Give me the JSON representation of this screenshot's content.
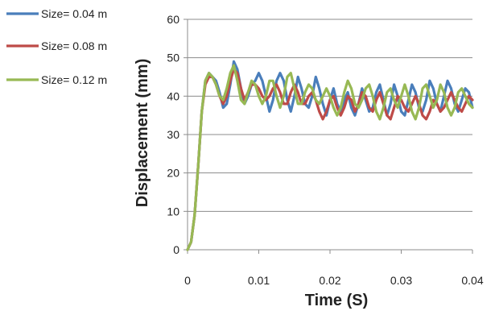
{
  "chart_data": {
    "type": "line",
    "xlabel": "Time (S)",
    "ylabel": "Displacement (mm)",
    "xlim": [
      0,
      0.04
    ],
    "ylim": [
      0,
      60
    ],
    "xticks": [
      0,
      0.01,
      0.02,
      0.03,
      0.04
    ],
    "xtick_labels": [
      "0",
      "0.01",
      "0.02",
      "0.03",
      "0.04"
    ],
    "yticks": [
      0,
      10,
      20,
      30,
      40,
      50,
      60
    ],
    "ytick_labels": [
      "0",
      "10",
      "20",
      "30",
      "40",
      "50",
      "60"
    ],
    "grid": "horizontal",
    "legend_position": "top-left",
    "series": [
      {
        "name": "Size= 0.04 m",
        "color": "#4a7ebb",
        "x": [
          0,
          0.0005,
          0.001,
          0.0015,
          0.002,
          0.0025,
          0.003,
          0.0035,
          0.004,
          0.0045,
          0.005,
          0.0055,
          0.006,
          0.0065,
          0.007,
          0.0075,
          0.008,
          0.0085,
          0.009,
          0.0095,
          0.01,
          0.0105,
          0.011,
          0.0115,
          0.012,
          0.0125,
          0.013,
          0.0135,
          0.014,
          0.0145,
          0.015,
          0.0155,
          0.016,
          0.0165,
          0.017,
          0.0175,
          0.018,
          0.0185,
          0.019,
          0.0195,
          0.02,
          0.0205,
          0.021,
          0.0215,
          0.022,
          0.0225,
          0.023,
          0.0235,
          0.024,
          0.0245,
          0.025,
          0.0255,
          0.026,
          0.0265,
          0.027,
          0.0275,
          0.028,
          0.0285,
          0.029,
          0.0295,
          0.03,
          0.0305,
          0.031,
          0.0315,
          0.032,
          0.0325,
          0.033,
          0.0335,
          0.034,
          0.0345,
          0.035,
          0.0355,
          0.036,
          0.0365,
          0.037,
          0.0375,
          0.038,
          0.0385,
          0.039,
          0.0395,
          0.04
        ],
        "y": [
          0,
          2,
          9,
          22,
          36,
          44,
          46,
          45,
          44,
          41,
          37,
          38,
          43,
          49,
          47,
          42,
          38,
          40,
          43,
          44,
          46,
          44,
          40,
          36,
          39,
          44,
          46,
          44,
          39,
          36,
          40,
          45,
          42,
          38,
          37,
          40,
          45,
          42,
          38,
          35,
          39,
          42,
          38,
          36,
          39,
          41,
          37,
          35,
          38,
          42,
          39,
          36,
          37,
          41,
          43,
          39,
          35,
          38,
          43,
          40,
          36,
          35,
          39,
          43,
          41,
          37,
          36,
          39,
          44,
          42,
          38,
          36,
          40,
          44,
          42,
          38,
          36,
          39,
          42,
          41,
          37
        ]
      },
      {
        "name": "Size= 0.08 m",
        "color": "#be4b48",
        "x": [
          0,
          0.0005,
          0.001,
          0.0015,
          0.002,
          0.0025,
          0.003,
          0.0035,
          0.004,
          0.0045,
          0.005,
          0.0055,
          0.006,
          0.0065,
          0.007,
          0.0075,
          0.008,
          0.0085,
          0.009,
          0.0095,
          0.01,
          0.0105,
          0.011,
          0.0115,
          0.012,
          0.0125,
          0.013,
          0.0135,
          0.014,
          0.0145,
          0.015,
          0.0155,
          0.016,
          0.0165,
          0.017,
          0.0175,
          0.018,
          0.0185,
          0.019,
          0.0195,
          0.02,
          0.0205,
          0.021,
          0.0215,
          0.022,
          0.0225,
          0.023,
          0.0235,
          0.024,
          0.0245,
          0.025,
          0.0255,
          0.026,
          0.0265,
          0.027,
          0.0275,
          0.028,
          0.0285,
          0.029,
          0.0295,
          0.03,
          0.0305,
          0.031,
          0.0315,
          0.032,
          0.0325,
          0.033,
          0.0335,
          0.034,
          0.0345,
          0.035,
          0.0355,
          0.036,
          0.0365,
          0.037,
          0.0375,
          0.038,
          0.0385,
          0.039,
          0.0395,
          0.04
        ],
        "y": [
          0,
          2,
          9,
          22,
          36,
          43,
          45,
          45,
          43,
          40,
          38,
          40,
          44,
          47,
          46,
          42,
          39,
          41,
          43,
          43,
          42,
          40,
          39,
          40,
          42,
          43,
          41,
          38,
          38,
          41,
          43,
          41,
          38,
          38,
          40,
          41,
          39,
          36,
          34,
          36,
          39,
          40,
          37,
          35,
          37,
          40,
          39,
          36,
          38,
          41,
          40,
          37,
          36,
          39,
          41,
          38,
          35,
          34,
          37,
          40,
          39,
          37,
          36,
          38,
          40,
          38,
          35,
          34,
          36,
          39,
          38,
          36,
          37,
          39,
          41,
          39,
          37,
          36,
          38,
          40,
          39
        ]
      },
      {
        "name": "Size= 0.12 m",
        "color": "#98b954",
        "x": [
          0,
          0.0005,
          0.001,
          0.0015,
          0.002,
          0.0025,
          0.003,
          0.0035,
          0.004,
          0.0045,
          0.005,
          0.0055,
          0.006,
          0.0065,
          0.007,
          0.0075,
          0.008,
          0.0085,
          0.009,
          0.0095,
          0.01,
          0.0105,
          0.011,
          0.0115,
          0.012,
          0.0125,
          0.013,
          0.0135,
          0.014,
          0.0145,
          0.015,
          0.0155,
          0.016,
          0.0165,
          0.017,
          0.0175,
          0.018,
          0.0185,
          0.019,
          0.0195,
          0.02,
          0.0205,
          0.021,
          0.0215,
          0.022,
          0.0225,
          0.023,
          0.0235,
          0.024,
          0.0245,
          0.025,
          0.0255,
          0.026,
          0.0265,
          0.027,
          0.0275,
          0.028,
          0.0285,
          0.029,
          0.0295,
          0.03,
          0.0305,
          0.031,
          0.0315,
          0.032,
          0.0325,
          0.033,
          0.0335,
          0.034,
          0.0345,
          0.035,
          0.0355,
          0.036,
          0.0365,
          0.037,
          0.0375,
          0.038,
          0.0385,
          0.039,
          0.0395,
          0.04
        ],
        "y": [
          0,
          2,
          9,
          22,
          36,
          44,
          46,
          45,
          43,
          40,
          39,
          42,
          46,
          48,
          44,
          39,
          38,
          41,
          44,
          43,
          40,
          38,
          40,
          44,
          44,
          40,
          37,
          40,
          45,
          46,
          42,
          38,
          38,
          41,
          43,
          42,
          39,
          38,
          40,
          42,
          40,
          37,
          35,
          37,
          41,
          44,
          42,
          38,
          37,
          39,
          42,
          43,
          40,
          36,
          34,
          37,
          41,
          42,
          39,
          37,
          40,
          43,
          40,
          36,
          34,
          37,
          42,
          43,
          40,
          37,
          39,
          43,
          41,
          37,
          35,
          37,
          41,
          42,
          40,
          38,
          37
        ]
      }
    ]
  }
}
